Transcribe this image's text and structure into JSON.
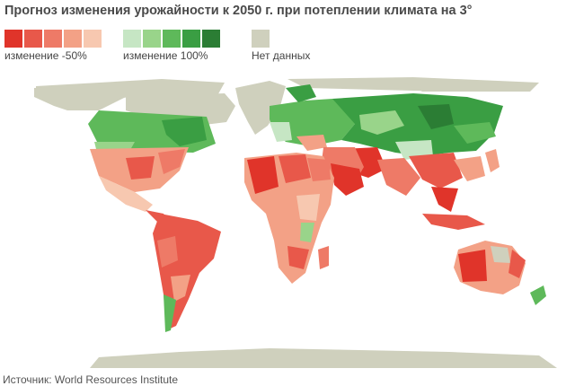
{
  "title": "Прогноз изменения урожайности к 2050 г. при потеплении климата на 3°",
  "legend": {
    "swatches": [
      "#e0342a",
      "#e8584a",
      "#ee7a67",
      "#f3a186",
      "#f7c8b0",
      "#c6e6c4",
      "#99d48a",
      "#5eb95a",
      "#3a9e43",
      "#2b7d34"
    ],
    "nodata_color": "#cfd0bd",
    "label_low": "изменение -50%",
    "label_high": "изменение 100%",
    "label_nodata": "Нет данных"
  },
  "source": "Источник: World Resources Institute"
}
